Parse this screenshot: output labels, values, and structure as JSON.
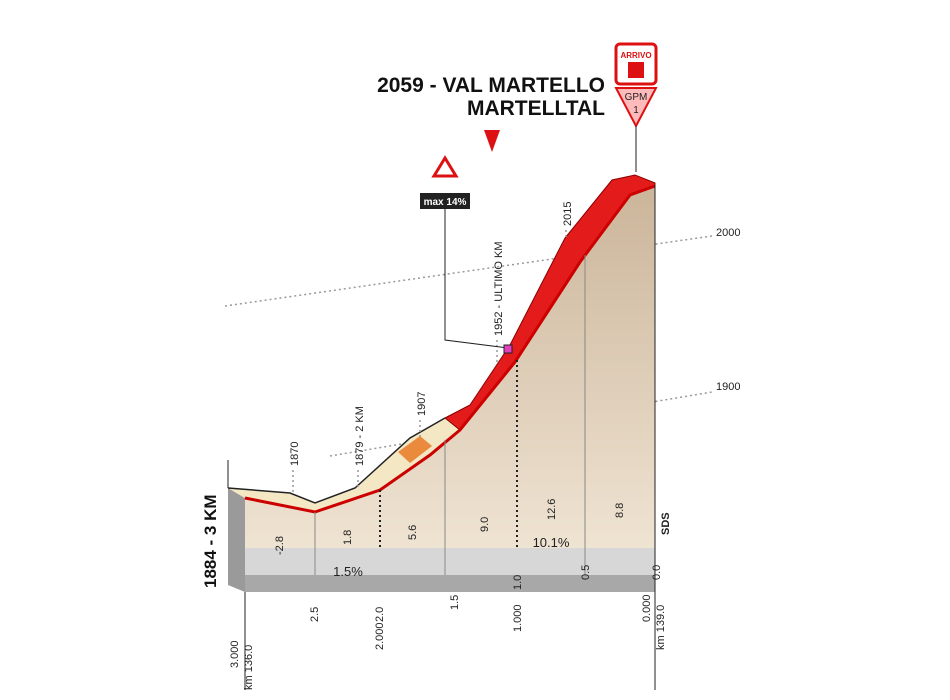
{
  "title": {
    "line1": "2059 - VAL MARTELLO",
    "line2": "MARTELLTAL"
  },
  "finish_icon": {
    "label": "ARRIVO"
  },
  "gpm": {
    "label": "GPM",
    "category": "1"
  },
  "start_label": "1884 - 3 KM",
  "max_gradient": "max 14%",
  "points": [
    "1870",
    "1879 - 2 KM",
    "1907",
    "1952 - ULTIMO KM",
    "2015"
  ],
  "altitude_lines": [
    "2000",
    "1900"
  ],
  "segment_gradients": [
    "-2.8",
    "1.8",
    "5.6",
    "9.0",
    "12.6",
    "8.8"
  ],
  "average_gradients": [
    "1.5%",
    "10.1%"
  ],
  "km_to_go": [
    "2.5",
    "2.0",
    "1.5",
    "1.0",
    "0.5",
    "0.0"
  ],
  "distance_markers": [
    "3.000",
    "2.000",
    "1.000",
    "0.000"
  ],
  "km_markers": [
    "km 136.0",
    "km 139.0"
  ],
  "sds": "SDS"
}
